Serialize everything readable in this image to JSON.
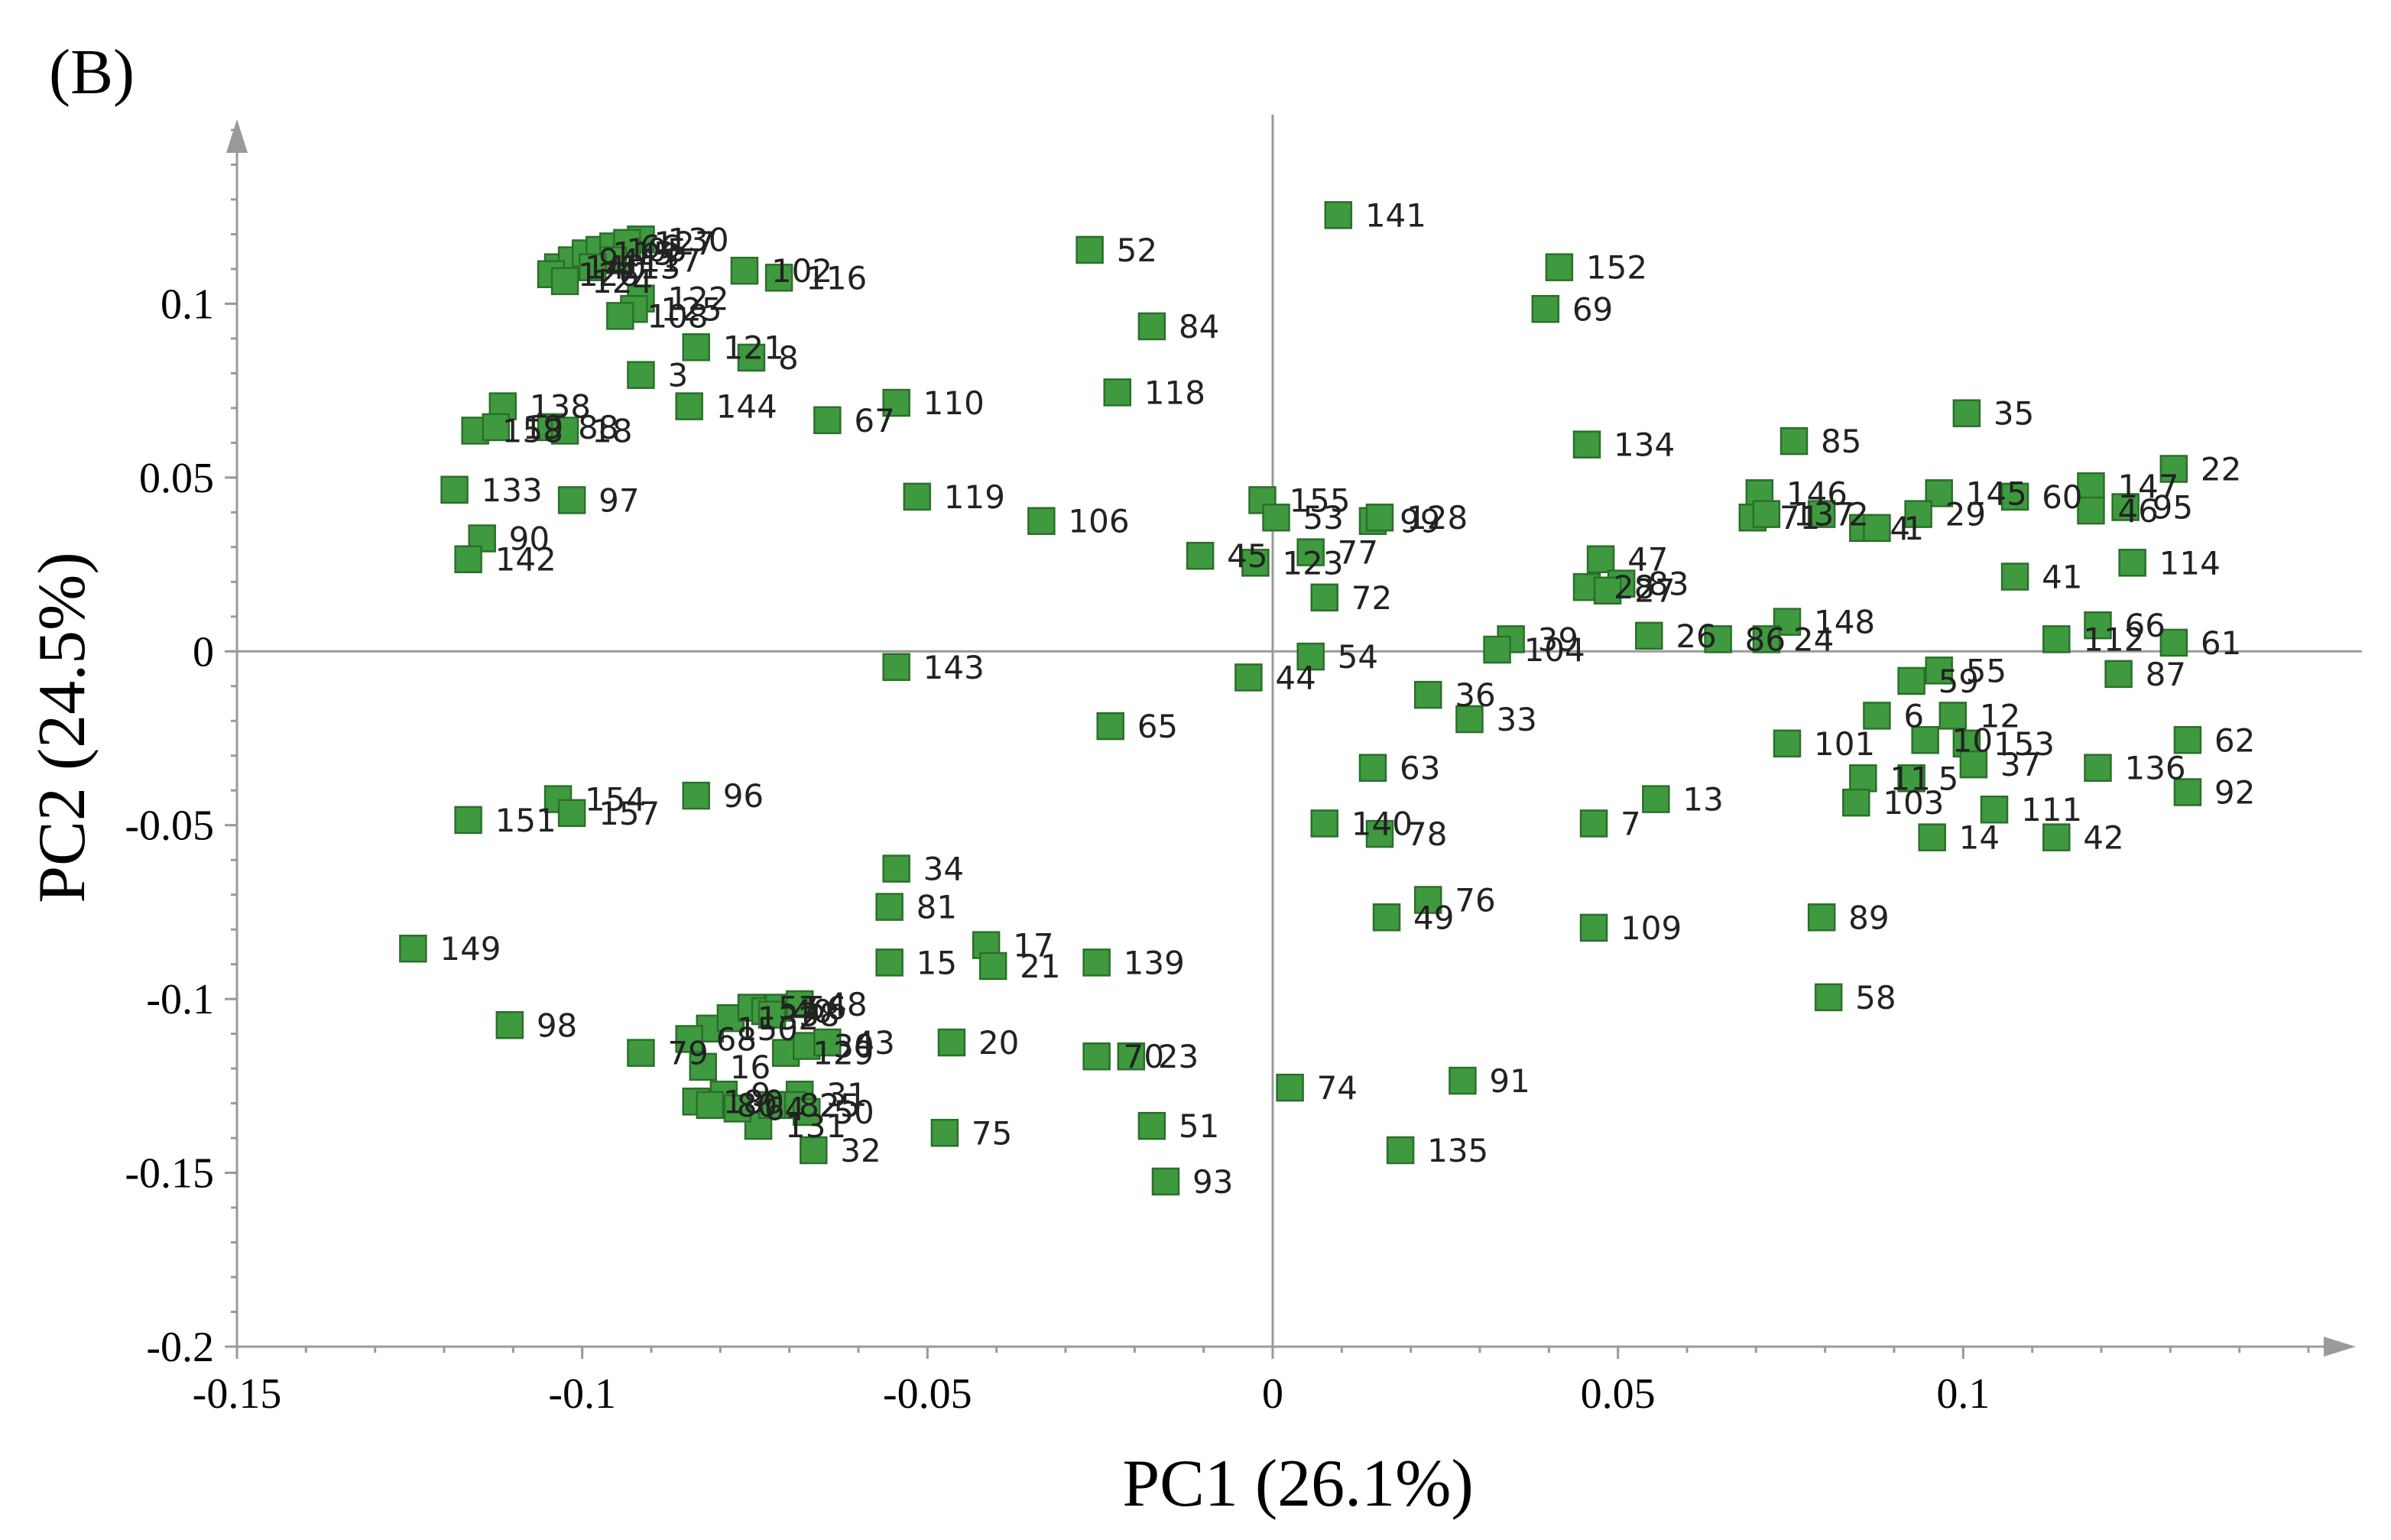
{
  "panel_label": "(B)",
  "colors": {
    "marker_fill": "#3f9a3f",
    "marker_stroke": "#2b6f2b",
    "axis": "#9a9a9a"
  },
  "chart_data": {
    "type": "scatter",
    "title": "",
    "xlabel": "PC1 (26.1%)",
    "ylabel": "PC2 (24.5%)",
    "xlim": [
      -0.15,
      0.15
    ],
    "ylim": [
      -0.2,
      0.15
    ],
    "x_ticks": [
      -0.15,
      -0.1,
      -0.05,
      0,
      0.05,
      0.1
    ],
    "x_tick_labels": [
      "-0.15",
      "-0.1",
      "-0.05",
      "0",
      "0.05",
      "0.1"
    ],
    "y_ticks": [
      -0.2,
      -0.15,
      -0.1,
      -0.05,
      0,
      0.05,
      0.1
    ],
    "y_tick_labels": [
      "-0.2",
      "-0.15",
      "-0.1",
      "-0.05",
      "0",
      "0.05",
      "0.1"
    ],
    "grid": false,
    "reference_lines": {
      "x": 0,
      "y": 0
    },
    "marker": "square",
    "points": [
      {
        "label": "141",
        "x": 0.0095,
        "y": 0.1255
      },
      {
        "label": "152",
        "x": 0.0415,
        "y": 0.1105
      },
      {
        "label": "69",
        "x": 0.0395,
        "y": 0.0985
      },
      {
        "label": "52",
        "x": -0.0265,
        "y": 0.1155
      },
      {
        "label": "84",
        "x": -0.0175,
        "y": 0.0935
      },
      {
        "label": "118",
        "x": -0.0225,
        "y": 0.0745
      },
      {
        "label": "130",
        "x": -0.0915,
        "y": 0.1185
      },
      {
        "label": "102",
        "x": -0.0765,
        "y": 0.1095
      },
      {
        "label": "116",
        "x": -0.0715,
        "y": 0.1075
      },
      {
        "label": "140",
        "x": -0.1035,
        "y": 0.1105
      },
      {
        "label": "94",
        "x": -0.1015,
        "y": 0.1125
      },
      {
        "label": "115",
        "x": -0.0995,
        "y": 0.1145
      },
      {
        "label": "105",
        "x": -0.0975,
        "y": 0.1155
      },
      {
        "label": "66",
        "x": -0.0955,
        "y": 0.1165
      },
      {
        "label": "127",
        "x": -0.0935,
        "y": 0.1175
      },
      {
        "label": "117",
        "x": -0.0955,
        "y": 0.1125
      },
      {
        "label": "113",
        "x": -0.0985,
        "y": 0.1105
      },
      {
        "label": "126",
        "x": -0.1045,
        "y": 0.1085
      },
      {
        "label": "124",
        "x": -0.1025,
        "y": 0.1065
      },
      {
        "label": "122",
        "x": -0.0915,
        "y": 0.1015
      },
      {
        "label": "125",
        "x": -0.0925,
        "y": 0.0985
      },
      {
        "label": "108",
        "x": -0.0945,
        "y": 0.0965
      },
      {
        "label": "121",
        "x": -0.0835,
        "y": 0.0875
      },
      {
        "label": "8",
        "x": -0.0755,
        "y": 0.0845
      },
      {
        "label": "3",
        "x": -0.0915,
        "y": 0.0795
      },
      {
        "label": "138",
        "x": -0.1115,
        "y": 0.0705
      },
      {
        "label": "158",
        "x": -0.1155,
        "y": 0.0635
      },
      {
        "label": "19",
        "x": -0.1125,
        "y": 0.0645
      },
      {
        "label": "88",
        "x": -0.1045,
        "y": 0.0645
      },
      {
        "label": "18",
        "x": -0.1025,
        "y": 0.0635
      },
      {
        "label": "144",
        "x": -0.0845,
        "y": 0.0705
      },
      {
        "label": "67",
        "x": -0.0645,
        "y": 0.0665
      },
      {
        "label": "110",
        "x": -0.0545,
        "y": 0.0715
      },
      {
        "label": "133",
        "x": -0.1185,
        "y": 0.0465
      },
      {
        "label": "97",
        "x": -0.1015,
        "y": 0.0435
      },
      {
        "label": "90",
        "x": -0.1145,
        "y": 0.0325
      },
      {
        "label": "142",
        "x": -0.1165,
        "y": 0.0265
      },
      {
        "label": "119",
        "x": -0.0515,
        "y": 0.0445
      },
      {
        "label": "106",
        "x": -0.0335,
        "y": 0.0375
      },
      {
        "label": "155",
        "x": -0.0015,
        "y": 0.0435
      },
      {
        "label": "53",
        "x": 0.0005,
        "y": 0.0385
      },
      {
        "label": "99",
        "x": 0.0145,
        "y": 0.0375
      },
      {
        "label": "128",
        "x": 0.0155,
        "y": 0.0385
      },
      {
        "label": "45",
        "x": -0.0105,
        "y": 0.0275
      },
      {
        "label": "123",
        "x": -0.0025,
        "y": 0.0255
      },
      {
        "label": "77",
        "x": 0.0055,
        "y": 0.0285
      },
      {
        "label": "72",
        "x": 0.0075,
        "y": 0.0155
      },
      {
        "label": "143",
        "x": -0.0545,
        "y": -0.0045
      },
      {
        "label": "44",
        "x": -0.0035,
        "y": -0.0075
      },
      {
        "label": "54",
        "x": 0.0055,
        "y": -0.0015
      },
      {
        "label": "65",
        "x": -0.0235,
        "y": -0.0215
      },
      {
        "label": "36",
        "x": 0.0225,
        "y": -0.0125
      },
      {
        "label": "33",
        "x": 0.0285,
        "y": -0.0195
      },
      {
        "label": "39",
        "x": 0.0345,
        "y": 0.0035
      },
      {
        "label": "104",
        "x": 0.0325,
        "y": 0.0005
      },
      {
        "label": "28",
        "x": 0.0455,
        "y": 0.0185
      },
      {
        "label": "47",
        "x": 0.0475,
        "y": 0.0265
      },
      {
        "label": "83",
        "x": 0.0505,
        "y": 0.0195
      },
      {
        "label": "27",
        "x": 0.0485,
        "y": 0.0175
      },
      {
        "label": "26",
        "x": 0.0545,
        "y": 0.0045
      },
      {
        "label": "86",
        "x": 0.0645,
        "y": 0.0035
      },
      {
        "label": "134",
        "x": 0.0455,
        "y": 0.0595
      },
      {
        "label": "146",
        "x": 0.0705,
        "y": 0.0455
      },
      {
        "label": "85",
        "x": 0.0755,
        "y": 0.0605
      },
      {
        "label": "71",
        "x": 0.0695,
        "y": 0.0385
      },
      {
        "label": "137",
        "x": 0.0715,
        "y": 0.0395
      },
      {
        "label": "2",
        "x": 0.0795,
        "y": 0.0395
      },
      {
        "label": "4",
        "x": 0.0855,
        "y": 0.0355
      },
      {
        "label": "148",
        "x": 0.0745,
        "y": 0.0085
      },
      {
        "label": "24",
        "x": 0.0715,
        "y": 0.0035
      },
      {
        "label": "35",
        "x": 0.1005,
        "y": 0.0685
      },
      {
        "label": "145",
        "x": 0.0965,
        "y": 0.0455
      },
      {
        "label": "60",
        "x": 0.1075,
        "y": 0.0445
      },
      {
        "label": "29",
        "x": 0.0935,
        "y": 0.0395
      },
      {
        "label": "147",
        "x": 0.1185,
        "y": 0.0475
      },
      {
        "label": "22",
        "x": 0.1305,
        "y": 0.0525
      },
      {
        "label": "95",
        "x": 0.1235,
        "y": 0.0415
      },
      {
        "label": "1",
        "x": 0.0875,
        "y": 0.0355
      },
      {
        "label": "41",
        "x": 0.1075,
        "y": 0.0215
      },
      {
        "label": "46",
        "x": 0.1185,
        "y": 0.0405
      },
      {
        "label": "114",
        "x": 0.1245,
        "y": 0.0255
      },
      {
        "label": "112",
        "x": 0.1135,
        "y": 0.0035
      },
      {
        "label": "61",
        "x": 0.1305,
        "y": 0.0025
      },
      {
        "label": "87",
        "x": 0.1225,
        "y": -0.0065
      },
      {
        "label": "55",
        "x": 0.0965,
        "y": -0.0055
      },
      {
        "label": "59",
        "x": 0.0925,
        "y": -0.0085
      },
      {
        "label": "66",
        "x": 0.1195,
        "y": 0.0075
      },
      {
        "label": "6",
        "x": 0.0875,
        "y": -0.0185
      },
      {
        "label": "10",
        "x": 0.0945,
        "y": -0.0255
      },
      {
        "label": "12",
        "x": 0.0985,
        "y": -0.0185
      },
      {
        "label": "153",
        "x": 0.1005,
        "y": -0.0265
      },
      {
        "label": "101",
        "x": 0.0745,
        "y": -0.0265
      },
      {
        "label": "136",
        "x": 0.1195,
        "y": -0.0335
      },
      {
        "label": "62",
        "x": 0.1325,
        "y": -0.0255
      },
      {
        "label": "11",
        "x": 0.0855,
        "y": -0.0365
      },
      {
        "label": "103",
        "x": 0.0845,
        "y": -0.0435
      },
      {
        "label": "5",
        "x": 0.0925,
        "y": -0.0365
      },
      {
        "label": "37",
        "x": 0.1015,
        "y": -0.0325
      },
      {
        "label": "111",
        "x": 0.1045,
        "y": -0.0455
      },
      {
        "label": "42",
        "x": 0.1135,
        "y": -0.0535
      },
      {
        "label": "92",
        "x": 0.1325,
        "y": -0.0405
      },
      {
        "label": "14",
        "x": 0.0955,
        "y": -0.0535
      },
      {
        "label": "13",
        "x": 0.0555,
        "y": -0.0425
      },
      {
        "label": "7",
        "x": 0.0465,
        "y": -0.0495
      },
      {
        "label": "63",
        "x": 0.0145,
        "y": -0.0335
      },
      {
        "label": "140",
        "x": 0.0075,
        "y": -0.0495
      },
      {
        "label": "78",
        "x": 0.0155,
        "y": -0.0525
      },
      {
        "label": "49",
        "x": 0.0165,
        "y": -0.0765
      },
      {
        "label": "76",
        "x": 0.0225,
        "y": -0.0715
      },
      {
        "label": "109",
        "x": 0.0465,
        "y": -0.0795
      },
      {
        "label": "89",
        "x": 0.0795,
        "y": -0.0765
      },
      {
        "label": "58",
        "x": 0.0805,
        "y": -0.0995
      },
      {
        "label": "74",
        "x": 0.0025,
        "y": -0.1255
      },
      {
        "label": "91",
        "x": 0.0275,
        "y": -0.1235
      },
      {
        "label": "135",
        "x": 0.0185,
        "y": -0.1435
      },
      {
        "label": "154",
        "x": -0.1035,
        "y": -0.0425
      },
      {
        "label": "151",
        "x": -0.1165,
        "y": -0.0485
      },
      {
        "label": "157",
        "x": -0.1015,
        "y": -0.0465
      },
      {
        "label": "96",
        "x": -0.0835,
        "y": -0.0415
      },
      {
        "label": "34",
        "x": -0.0545,
        "y": -0.0625
      },
      {
        "label": "17",
        "x": -0.0415,
        "y": -0.0845
      },
      {
        "label": "81",
        "x": -0.0555,
        "y": -0.0735
      },
      {
        "label": "15",
        "x": -0.0555,
        "y": -0.0895
      },
      {
        "label": "21",
        "x": -0.0405,
        "y": -0.0905
      },
      {
        "label": "139",
        "x": -0.0255,
        "y": -0.0895
      },
      {
        "label": "149",
        "x": -0.1245,
        "y": -0.0855
      },
      {
        "label": "98",
        "x": -0.1105,
        "y": -0.1075
      },
      {
        "label": "150",
        "x": -0.0815,
        "y": -0.1085
      },
      {
        "label": "132",
        "x": -0.0785,
        "y": -0.1055
      },
      {
        "label": "57",
        "x": -0.0755,
        "y": -0.1025
      },
      {
        "label": "40",
        "x": -0.0735,
        "y": -0.1035
      },
      {
        "label": "56",
        "x": -0.0715,
        "y": -0.1025
      },
      {
        "label": "48",
        "x": -0.0685,
        "y": -0.1015
      },
      {
        "label": "38",
        "x": -0.0725,
        "y": -0.1045
      },
      {
        "label": "129",
        "x": -0.0705,
        "y": -0.1155
      },
      {
        "label": "30",
        "x": -0.0675,
        "y": -0.1135
      },
      {
        "label": "43",
        "x": -0.0645,
        "y": -0.1125
      },
      {
        "label": "79",
        "x": -0.0915,
        "y": -0.1155
      },
      {
        "label": "68",
        "x": -0.0845,
        "y": -0.1115
      },
      {
        "label": "16",
        "x": -0.0825,
        "y": -0.1195
      },
      {
        "label": "9",
        "x": -0.0795,
        "y": -0.1275
      },
      {
        "label": "31",
        "x": -0.0685,
        "y": -0.1275
      },
      {
        "label": "25",
        "x": -0.0695,
        "y": -0.1305
      },
      {
        "label": "180",
        "x": -0.0835,
        "y": -0.1295
      },
      {
        "label": "80",
        "x": -0.0815,
        "y": -0.1305
      },
      {
        "label": "131",
        "x": -0.0745,
        "y": -0.1365
      },
      {
        "label": "64",
        "x": -0.0775,
        "y": -0.1315
      },
      {
        "label": "82",
        "x": -0.0725,
        "y": -0.1305
      },
      {
        "label": "32",
        "x": -0.0665,
        "y": -0.1435
      },
      {
        "label": "50",
        "x": -0.0675,
        "y": -0.1325
      },
      {
        "label": "20",
        "x": -0.0465,
        "y": -0.1125
      },
      {
        "label": "70",
        "x": -0.0255,
        "y": -0.1165
      },
      {
        "label": "23",
        "x": -0.0205,
        "y": -0.1165
      },
      {
        "label": "75",
        "x": -0.0475,
        "y": -0.1385
      },
      {
        "label": "51",
        "x": -0.0175,
        "y": -0.1365
      },
      {
        "label": "93",
        "x": -0.0155,
        "y": -0.1525
      }
    ]
  }
}
